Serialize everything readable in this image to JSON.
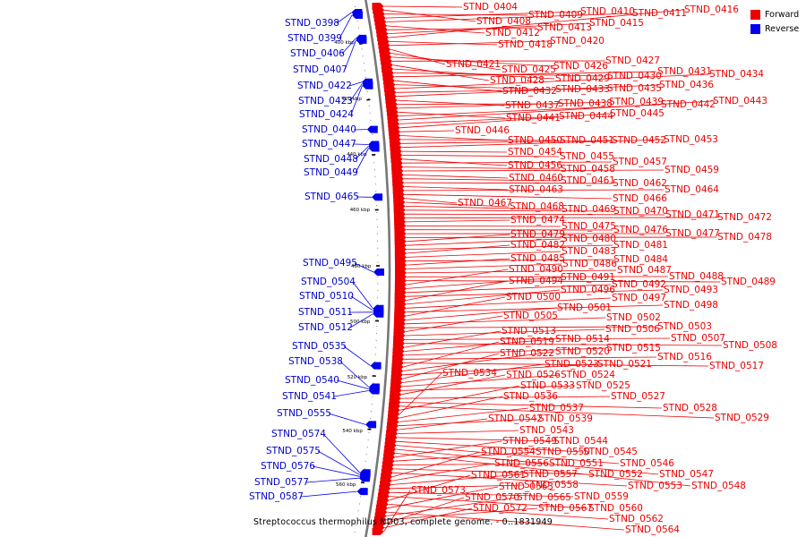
{
  "caption": "Streptococcus thermophilus ND03, complete genome. - 0..1831949",
  "legend": {
    "forward": {
      "label": "Forward",
      "color": "#ee0000"
    },
    "reverse": {
      "label": "Reverse",
      "color": "#0000ee"
    }
  },
  "track": {
    "start": 392000,
    "end": 572000
  },
  "ticks": [
    "400 kbp",
    "420 kbp",
    "440 kbp",
    "460 kbp",
    "480 kbp",
    "500 kbp",
    "520 kbp",
    "540 kbp",
    "560 kbp"
  ],
  "forward_genes": [
    "STND_0404",
    "STND_0408",
    "STND_0409",
    "STND_0410",
    "STND_0411",
    "STND_0412",
    "STND_0413",
    "STND_0415",
    "STND_0416",
    "STND_0418",
    "STND_0420",
    "STND_0421",
    "STND_0425",
    "STND_0426",
    "STND_0427",
    "STND_0428",
    "STND_0429",
    "STND_0430",
    "STND_0431",
    "STND_0432",
    "STND_0433",
    "STND_0434",
    "STND_0435",
    "STND_0436",
    "STND_0437",
    "STND_0438",
    "STND_0439",
    "STND_0441",
    "STND_0442",
    "STND_0443",
    "STND_0444",
    "STND_0445",
    "STND_0446",
    "STND_0450",
    "STND_0451",
    "STND_0452",
    "STND_0453",
    "STND_0454",
    "STND_0455",
    "STND_0456",
    "STND_0457",
    "STND_0458",
    "STND_0459",
    "STND_0460",
    "STND_0461",
    "STND_0462",
    "STND_0463",
    "STND_0464",
    "STND_0466",
    "STND_0467",
    "STND_0468",
    "STND_0469",
    "STND_0470",
    "STND_0471",
    "STND_0472",
    "STND_0474",
    "STND_0475",
    "STND_0476",
    "STND_0477",
    "STND_0478",
    "STND_0479",
    "STND_0480",
    "STND_0481",
    "STND_0482",
    "STND_0483",
    "STND_0484",
    "STND_0485",
    "STND_0486",
    "STND_0487",
    "STND_0488",
    "STND_0489",
    "STND_0490",
    "STND_0491",
    "STND_0492",
    "STND_0493",
    "STND_0494",
    "STND_0496",
    "STND_0497",
    "STND_0498",
    "STND_0500",
    "STND_0501",
    "STND_0502",
    "STND_0503",
    "STND_0505",
    "STND_0506",
    "STND_0507",
    "STND_0508",
    "STND_0513",
    "STND_0514",
    "STND_0515",
    "STND_0516",
    "STND_0517",
    "STND_0519",
    "STND_0520",
    "STND_0521",
    "STND_0522",
    "STND_0523",
    "STND_0524",
    "STND_0525",
    "STND_0526",
    "STND_0527",
    "STND_0528",
    "STND_0529",
    "STND_0533",
    "STND_0534",
    "STND_0536",
    "STND_0537",
    "STND_0539",
    "STND_0542",
    "STND_0543",
    "STND_0544",
    "STND_0545",
    "STND_0546",
    "STND_0547",
    "STND_0548",
    "STND_0549",
    "STND_0550",
    "STND_0551",
    "STND_0552",
    "STND_0553",
    "STND_0554",
    "STND_0556",
    "STND_0557",
    "STND_0558",
    "STND_0559",
    "STND_0560",
    "STND_0561",
    "STND_0562",
    "STND_0563",
    "STND_0564",
    "STND_0565",
    "STND_0567",
    "STND_0570",
    "STND_0572",
    "STND_0573"
  ],
  "reverse_genes": [
    "STND_0398",
    "STND_0399",
    "STND_0406",
    "STND_0407",
    "STND_0422",
    "STND_0423",
    "STND_0424",
    "STND_0440",
    "STND_0447",
    "STND_0448",
    "STND_0449",
    "STND_0465",
    "STND_0495",
    "STND_0504",
    "STND_0510",
    "STND_0511",
    "STND_0512",
    "STND_0535",
    "STND_0538",
    "STND_0540",
    "STND_0541",
    "STND_0555",
    "STND_0574",
    "STND_0575",
    "STND_0576",
    "STND_0577",
    "STND_0587"
  ]
}
